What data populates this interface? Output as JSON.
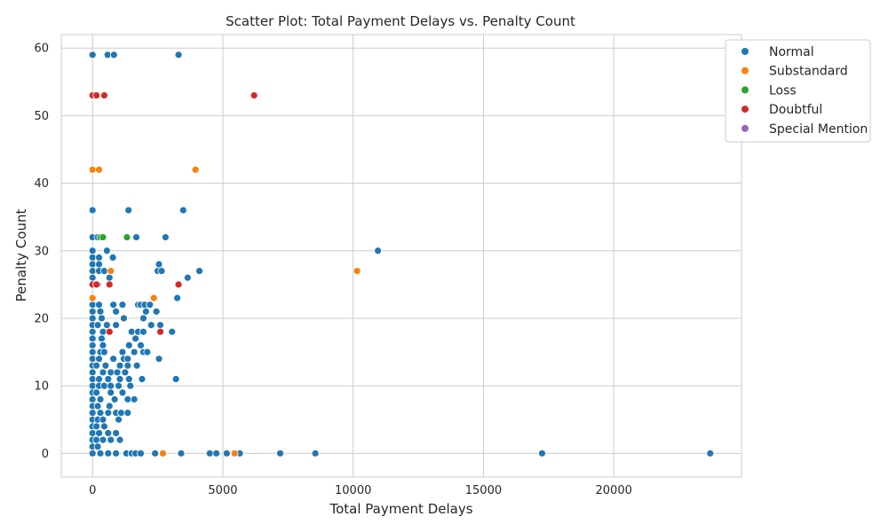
{
  "chart_data": {
    "type": "scatter",
    "title": "Scatter Plot: Total Payment Delays vs. Penalty Count",
    "xlabel": "Total Payment Delays",
    "ylabel": "Penalty Count",
    "xlim": [
      -1200,
      24900
    ],
    "ylim": [
      -3.5,
      62
    ],
    "xticks": [
      0,
      5000,
      10000,
      15000,
      20000
    ],
    "yticks": [
      0,
      10,
      20,
      30,
      40,
      50,
      60
    ],
    "grid": true,
    "legend_position": "upper-right-outside",
    "series": [
      {
        "name": "Normal",
        "color": "#1f77b4",
        "points": [
          [
            0,
            59
          ],
          [
            580,
            59
          ],
          [
            820,
            59
          ],
          [
            3300,
            59
          ],
          [
            0,
            36
          ],
          [
            1380,
            36
          ],
          [
            3480,
            36
          ],
          [
            0,
            32
          ],
          [
            200,
            32
          ],
          [
            1680,
            32
          ],
          [
            2800,
            32
          ],
          [
            0,
            30
          ],
          [
            550,
            30
          ],
          [
            10950,
            30
          ],
          [
            0,
            29
          ],
          [
            250,
            29
          ],
          [
            780,
            29
          ],
          [
            0,
            28
          ],
          [
            250,
            28
          ],
          [
            2550,
            28
          ],
          [
            0,
            27
          ],
          [
            250,
            27
          ],
          [
            450,
            27
          ],
          [
            2500,
            27
          ],
          [
            2650,
            27
          ],
          [
            4100,
            27
          ],
          [
            0,
            26
          ],
          [
            650,
            26
          ],
          [
            3650,
            26
          ],
          [
            0,
            25
          ],
          [
            200,
            25
          ],
          [
            0,
            23
          ],
          [
            3250,
            23
          ],
          [
            0,
            22
          ],
          [
            250,
            22
          ],
          [
            800,
            22
          ],
          [
            1150,
            22
          ],
          [
            1750,
            22
          ],
          [
            1850,
            22
          ],
          [
            2000,
            22
          ],
          [
            2200,
            22
          ],
          [
            0,
            21
          ],
          [
            300,
            21
          ],
          [
            900,
            21
          ],
          [
            2050,
            21
          ],
          [
            2450,
            21
          ],
          [
            0,
            20
          ],
          [
            350,
            20
          ],
          [
            1200,
            20
          ],
          [
            1950,
            20
          ],
          [
            0,
            19
          ],
          [
            200,
            19
          ],
          [
            550,
            19
          ],
          [
            900,
            19
          ],
          [
            2250,
            19
          ],
          [
            2600,
            19
          ],
          [
            0,
            18
          ],
          [
            400,
            18
          ],
          [
            650,
            18
          ],
          [
            1500,
            18
          ],
          [
            1750,
            18
          ],
          [
            1950,
            18
          ],
          [
            3050,
            18
          ],
          [
            0,
            17
          ],
          [
            350,
            17
          ],
          [
            1650,
            17
          ],
          [
            0,
            16
          ],
          [
            400,
            16
          ],
          [
            1400,
            16
          ],
          [
            1850,
            16
          ],
          [
            0,
            15
          ],
          [
            300,
            15
          ],
          [
            450,
            15
          ],
          [
            1150,
            15
          ],
          [
            1600,
            15
          ],
          [
            1950,
            15
          ],
          [
            2100,
            15
          ],
          [
            0,
            14
          ],
          [
            250,
            14
          ],
          [
            800,
            14
          ],
          [
            1200,
            14
          ],
          [
            1350,
            14
          ],
          [
            2550,
            14
          ],
          [
            0,
            13
          ],
          [
            150,
            13
          ],
          [
            500,
            13
          ],
          [
            1050,
            13
          ],
          [
            1350,
            13
          ],
          [
            1700,
            13
          ],
          [
            0,
            12
          ],
          [
            400,
            12
          ],
          [
            700,
            12
          ],
          [
            950,
            12
          ],
          [
            1250,
            12
          ],
          [
            0,
            11
          ],
          [
            250,
            11
          ],
          [
            600,
            11
          ],
          [
            1050,
            11
          ],
          [
            1400,
            11
          ],
          [
            1900,
            11
          ],
          [
            3200,
            11
          ],
          [
            0,
            10
          ],
          [
            250,
            10
          ],
          [
            450,
            10
          ],
          [
            700,
            10
          ],
          [
            1000,
            10
          ],
          [
            1450,
            10
          ],
          [
            0,
            9
          ],
          [
            150,
            9
          ],
          [
            700,
            9
          ],
          [
            1150,
            9
          ],
          [
            0,
            8
          ],
          [
            300,
            8
          ],
          [
            850,
            8
          ],
          [
            1350,
            8
          ],
          [
            1600,
            8
          ],
          [
            0,
            7
          ],
          [
            200,
            7
          ],
          [
            650,
            7
          ],
          [
            0,
            6
          ],
          [
            300,
            6
          ],
          [
            600,
            6
          ],
          [
            900,
            6
          ],
          [
            1100,
            6
          ],
          [
            1350,
            6
          ],
          [
            0,
            5
          ],
          [
            200,
            5
          ],
          [
            400,
            5
          ],
          [
            1000,
            5
          ],
          [
            0,
            4
          ],
          [
            150,
            4
          ],
          [
            450,
            4
          ],
          [
            0,
            3
          ],
          [
            250,
            3
          ],
          [
            600,
            3
          ],
          [
            900,
            3
          ],
          [
            0,
            2
          ],
          [
            150,
            2
          ],
          [
            400,
            2
          ],
          [
            700,
            2
          ],
          [
            1050,
            2
          ],
          [
            0,
            1
          ],
          [
            200,
            1
          ],
          [
            0,
            0
          ],
          [
            300,
            0
          ],
          [
            600,
            0
          ],
          [
            900,
            0
          ],
          [
            1300,
            0
          ],
          [
            1500,
            0
          ],
          [
            1650,
            0
          ],
          [
            1850,
            0
          ],
          [
            2400,
            0
          ],
          [
            3400,
            0
          ],
          [
            4500,
            0
          ],
          [
            4750,
            0
          ],
          [
            5150,
            0
          ],
          [
            5650,
            0
          ],
          [
            7200,
            0
          ],
          [
            8550,
            0
          ],
          [
            17250,
            0
          ],
          [
            23700,
            0
          ]
        ]
      },
      {
        "name": "Substandard",
        "color": "#ff7f0e",
        "points": [
          [
            0,
            42
          ],
          [
            250,
            42
          ],
          [
            3950,
            42
          ],
          [
            700,
            27
          ],
          [
            10150,
            27
          ],
          [
            0,
            23
          ],
          [
            2350,
            23
          ],
          [
            2700,
            0
          ],
          [
            5450,
            0
          ]
        ]
      },
      {
        "name": "Loss",
        "color": "#2ca02c",
        "points": [
          [
            300,
            32
          ],
          [
            400,
            32
          ],
          [
            1320,
            32
          ]
        ]
      },
      {
        "name": "Doubtful",
        "color": "#d62728",
        "points": [
          [
            0,
            53
          ],
          [
            150,
            53
          ],
          [
            450,
            53
          ],
          [
            6200,
            53
          ],
          [
            0,
            25
          ],
          [
            150,
            25
          ],
          [
            650,
            25
          ],
          [
            3300,
            25
          ],
          [
            650,
            18
          ],
          [
            2600,
            18
          ]
        ]
      },
      {
        "name": "Special Mention",
        "color": "#9467bd",
        "points": []
      }
    ]
  }
}
